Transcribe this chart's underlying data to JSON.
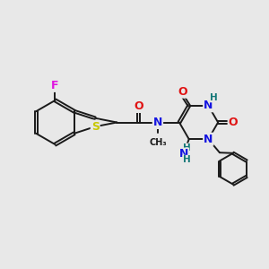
{
  "bg_color": "#e8e8e8",
  "bond_color": "#1a1a1a",
  "bond_width": 1.4,
  "atom_colors": {
    "C": "#1a1a1a",
    "N": "#1414e0",
    "O": "#e01414",
    "S": "#c8c800",
    "F": "#e014e0",
    "H": "#147878"
  },
  "font_size": 9.0
}
